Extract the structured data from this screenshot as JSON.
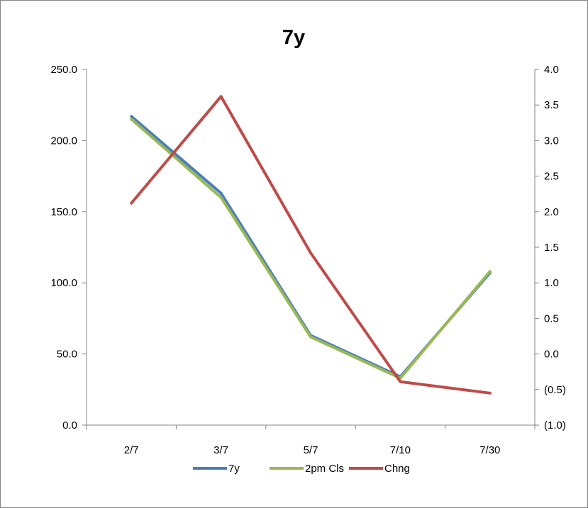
{
  "chart_data": {
    "type": "line",
    "title": "7y",
    "categories": [
      "2/7",
      "3/7",
      "5/7",
      "7/10",
      "7/30"
    ],
    "y_left": {
      "ylim": [
        0,
        250
      ],
      "ticks": [
        0,
        50,
        100,
        150,
        200,
        250
      ],
      "tick_labels": [
        "0.0",
        "50.0",
        "100.0",
        "150.0",
        "200.0",
        "250.0"
      ]
    },
    "y_right": {
      "ylim": [
        -1.0,
        4.0
      ],
      "ticks": [
        -1.0,
        -0.5,
        0.0,
        0.5,
        1.0,
        1.5,
        2.0,
        2.5,
        3.0,
        3.5,
        4.0
      ],
      "tick_labels": [
        "(1.0)",
        "(0.5)",
        "0.0",
        "0.5",
        "1.0",
        "1.5",
        "2.0",
        "2.5",
        "3.0",
        "3.5",
        "4.0"
      ],
      "negative_color": "#ff0000"
    },
    "series": [
      {
        "name": "7y",
        "axis": "left",
        "color": "#4a7ebb",
        "values": [
          217.0,
          163.0,
          63.0,
          34.0,
          107.0
        ]
      },
      {
        "name": "2pm Cls",
        "axis": "left",
        "color": "#98b954",
        "values": [
          215.0,
          160.0,
          62.0,
          33.0,
          108.0
        ]
      },
      {
        "name": "Chng",
        "axis": "right",
        "color": "#be4b48",
        "values": [
          2.12,
          3.62,
          1.42,
          -0.39,
          -0.55
        ]
      }
    ],
    "legend_position": "bottom",
    "grid": false
  }
}
